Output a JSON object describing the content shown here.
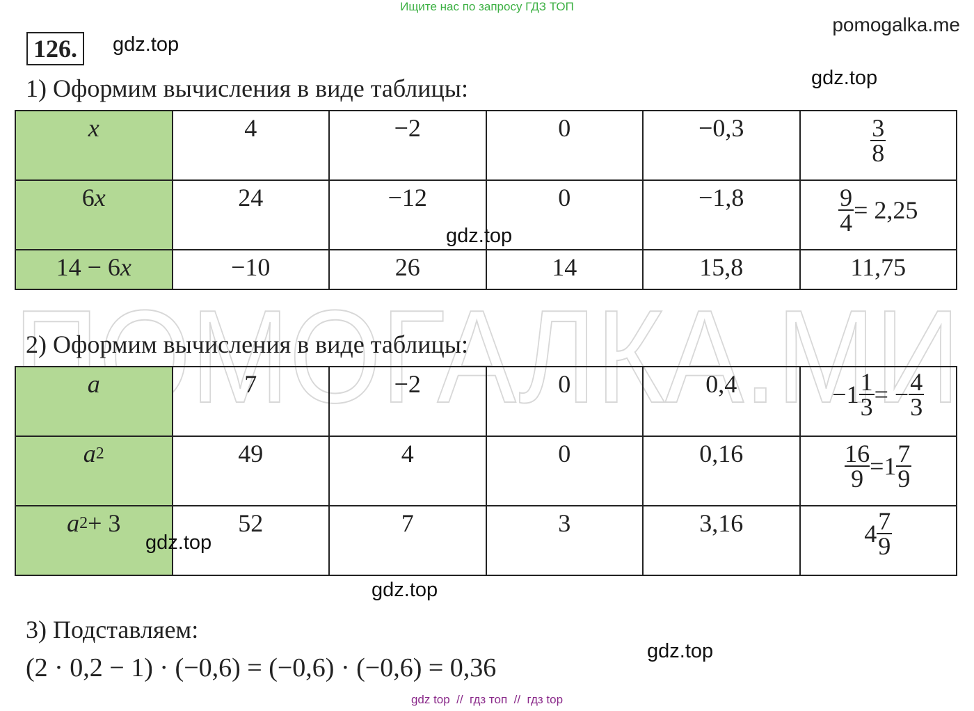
{
  "top_banner": "Ищите нас по запросу ГДЗ ТОП",
  "site": "pomogalka.me",
  "problem_number": "126.",
  "big_watermark": "ПОМОГАЛКА.МИ",
  "watermarks": [
    "gdz.top",
    "gdz.top",
    "gdz.top",
    "gdz.top",
    "gdz.top",
    "gdz.top"
  ],
  "part1": {
    "heading": "1) Оформим вычисления в виде таблицы:",
    "rows": [
      [
        [
          {
            "i": "x"
          }
        ],
        [
          "4"
        ],
        [
          "−2"
        ],
        [
          "0"
        ],
        [
          "−0,3"
        ],
        [
          {
            "num": "3",
            "den": "8"
          }
        ]
      ],
      [
        [
          "6",
          {
            "i": "x"
          }
        ],
        [
          "24"
        ],
        [
          "−12"
        ],
        [
          "0"
        ],
        [
          "−1,8"
        ],
        [
          {
            "num": "9",
            "den": "4"
          },
          " = 2,25"
        ]
      ],
      [
        [
          "14 − 6",
          {
            "i": "x"
          }
        ],
        [
          "−10"
        ],
        [
          "26"
        ],
        [
          "14"
        ],
        [
          "15,8"
        ],
        [
          "11,75"
        ]
      ]
    ]
  },
  "part2": {
    "heading": "2) Оформим вычисления в виде таблицы:",
    "rows": [
      [
        [
          {
            "i": "a"
          }
        ],
        [
          "7"
        ],
        [
          "−2"
        ],
        [
          "0"
        ],
        [
          "0,4"
        ],
        [
          "−",
          {
            "whole": "1",
            "num": "1",
            "den": "3"
          },
          " = −",
          {
            "num": "4",
            "den": "3"
          }
        ]
      ],
      [
        [
          {
            "i": "a"
          },
          {
            "sup": "2"
          }
        ],
        [
          "49"
        ],
        [
          "4"
        ],
        [
          "0"
        ],
        [
          "0,16"
        ],
        [
          {
            "num": "16",
            "den": "9"
          },
          " = ",
          {
            "whole": "1",
            "num": "7",
            "den": "9"
          }
        ]
      ],
      [
        [
          {
            "i": "a"
          },
          {
            "sup": "2"
          },
          " + 3"
        ],
        [
          "52"
        ],
        [
          "7"
        ],
        [
          "3"
        ],
        [
          "3,16"
        ],
        [
          {
            "whole": "4",
            "num": "7",
            "den": "9"
          }
        ]
      ]
    ]
  },
  "part3": {
    "heading": "3) Подставляем:",
    "equation": "(2 · 0,2 − 1) · (−0,6) = (−0,6) · (−0,6) = 0,36"
  },
  "footer": "gdz top  //  гдз топ  //  гдз top"
}
